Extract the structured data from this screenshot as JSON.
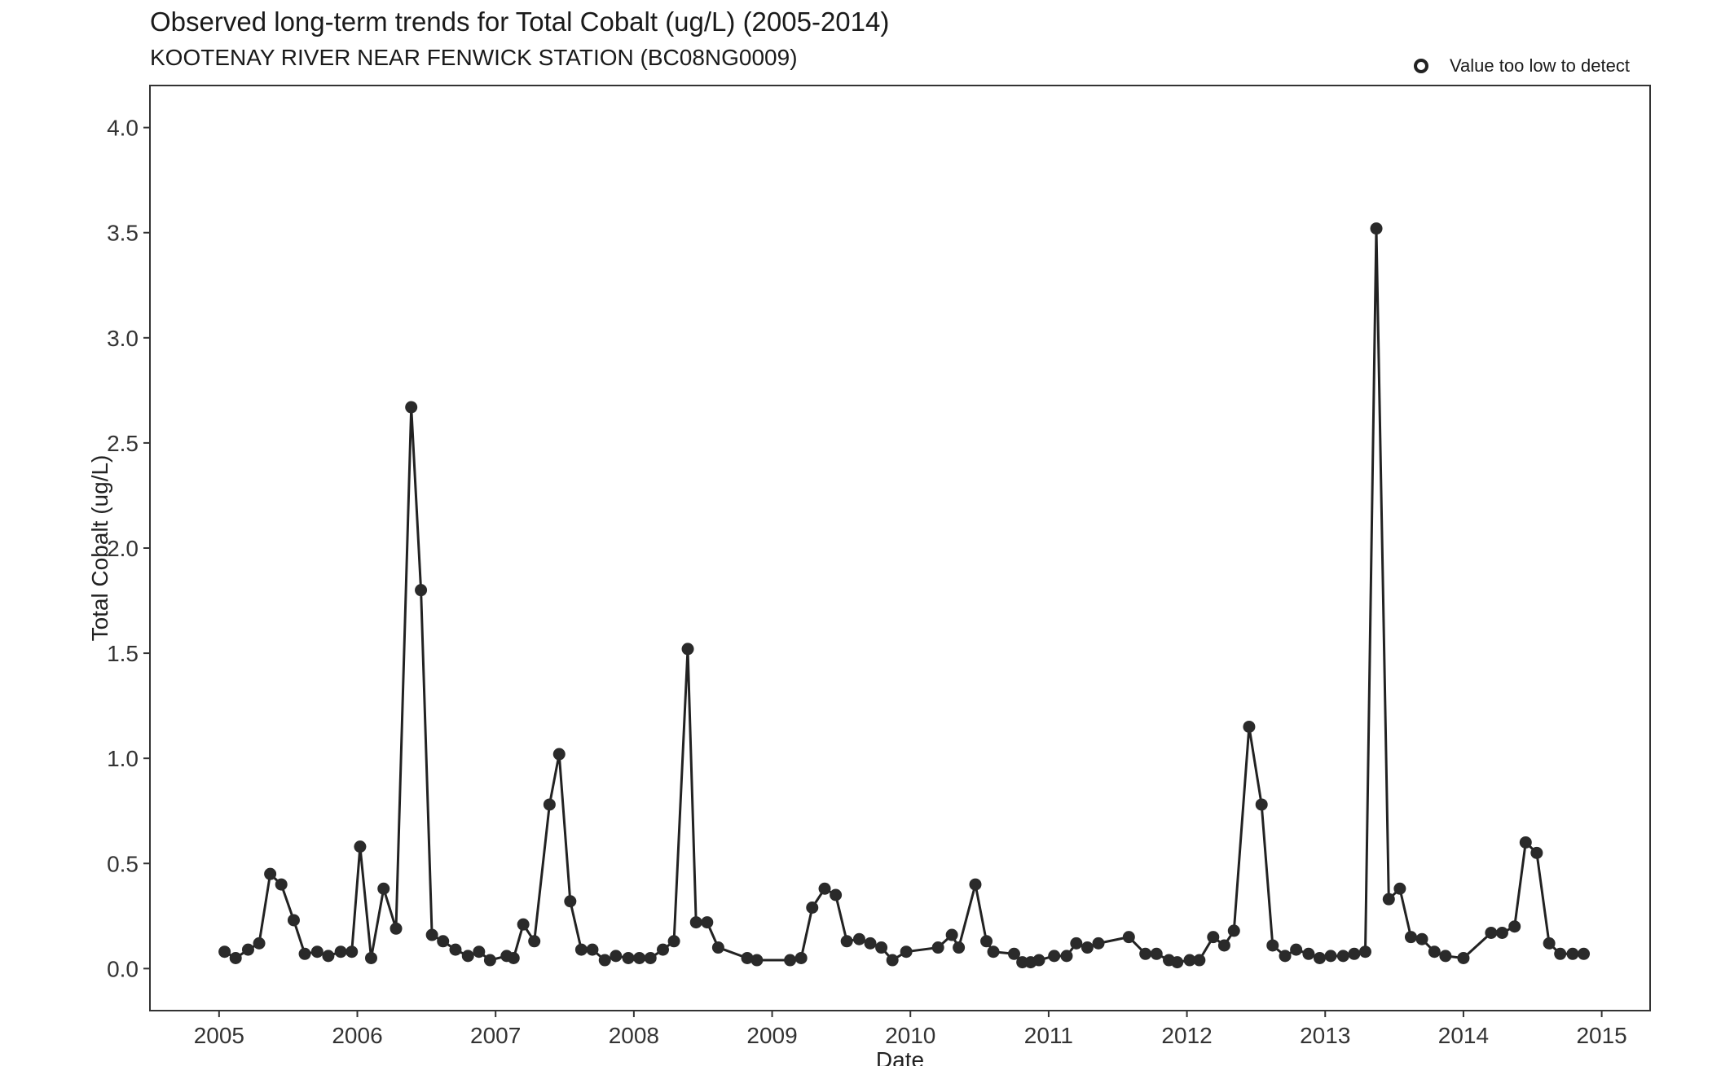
{
  "chart_data": {
    "type": "line",
    "title": "Observed long-term trends for Total Cobalt (ug/L) (2005-2014)",
    "subtitle": "KOOTENAY RIVER NEAR FENWICK STATION (BC08NG0009)",
    "xlabel": "Date",
    "ylabel": "Total Cobalt (ug/L)",
    "xlim": [
      2004.5,
      2015.35
    ],
    "ylim": [
      -0.2,
      4.2
    ],
    "x_ticks": [
      2005,
      2006,
      2007,
      2008,
      2009,
      2010,
      2011,
      2012,
      2013,
      2014,
      2015
    ],
    "y_ticks": [
      0.0,
      0.5,
      1.0,
      1.5,
      2.0,
      2.5,
      3.0,
      3.5,
      4.0
    ],
    "y_tick_labels": [
      "0.0",
      "0.5",
      "1.0",
      "1.5",
      "2.0",
      "2.5",
      "3.0",
      "3.5",
      "4.0"
    ],
    "grid": false,
    "legend_position": "top-right",
    "legend": [
      {
        "label": "Value too low to detect",
        "marker": "open-circle"
      }
    ],
    "line_color": "#222222",
    "marker_color": "#2a2a2a",
    "series": [
      {
        "x": [
          2005.04,
          2005.12,
          2005.21,
          2005.29,
          2005.37,
          2005.45,
          2005.54,
          2005.62,
          2005.71,
          2005.79,
          2005.88,
          2005.96,
          2006.02,
          2006.1,
          2006.19,
          2006.28,
          2006.39,
          2006.46,
          2006.54,
          2006.62,
          2006.71,
          2006.8,
          2006.88,
          2006.96,
          2007.08,
          2007.13,
          2007.2,
          2007.28,
          2007.39,
          2007.46,
          2007.54,
          2007.62,
          2007.7,
          2007.79,
          2007.87,
          2007.96,
          2008.04,
          2008.12,
          2008.21,
          2008.29,
          2008.39,
          2008.45,
          2008.53,
          2008.61,
          2008.82,
          2008.89,
          2009.13,
          2009.21,
          2009.29,
          2009.38,
          2009.46,
          2009.54,
          2009.63,
          2009.71,
          2009.79,
          2009.87,
          2009.97,
          2010.2,
          2010.3,
          2010.35,
          2010.47,
          2010.55,
          2010.6,
          2010.75,
          2010.81,
          2010.87,
          2010.93,
          2011.04,
          2011.13,
          2011.2,
          2011.28,
          2011.36,
          2011.58,
          2011.7,
          2011.78,
          2011.87,
          2011.93,
          2012.02,
          2012.09,
          2012.19,
          2012.27,
          2012.34,
          2012.45,
          2012.54,
          2012.62,
          2012.71,
          2012.79,
          2012.88,
          2012.96,
          2013.04,
          2013.13,
          2013.21,
          2013.29,
          2013.37,
          2013.46,
          2013.54,
          2013.62,
          2013.7,
          2013.79,
          2013.87,
          2014.0,
          2014.2,
          2014.28,
          2014.37,
          2014.45,
          2014.53,
          2014.62,
          2014.7,
          2014.79,
          2014.87
        ],
        "y": [
          0.08,
          0.05,
          0.09,
          0.12,
          0.45,
          0.4,
          0.23,
          0.07,
          0.08,
          0.06,
          0.08,
          0.08,
          0.58,
          0.05,
          0.38,
          0.19,
          2.67,
          1.8,
          0.16,
          0.13,
          0.09,
          0.06,
          0.08,
          0.04,
          0.06,
          0.05,
          0.21,
          0.13,
          0.78,
          1.02,
          0.32,
          0.09,
          0.09,
          0.04,
          0.06,
          0.05,
          0.05,
          0.05,
          0.09,
          0.13,
          1.52,
          0.22,
          0.22,
          0.1,
          0.05,
          0.04,
          0.04,
          0.05,
          0.29,
          0.38,
          0.35,
          0.13,
          0.14,
          0.12,
          0.1,
          0.04,
          0.08,
          0.1,
          0.16,
          0.1,
          0.4,
          0.13,
          0.08,
          0.07,
          0.03,
          0.03,
          0.04,
          0.06,
          0.06,
          0.12,
          0.1,
          0.12,
          0.15,
          0.07,
          0.07,
          0.04,
          0.03,
          0.04,
          0.04,
          0.15,
          0.11,
          0.18,
          1.15,
          0.78,
          0.11,
          0.06,
          0.09,
          0.07,
          0.05,
          0.06,
          0.06,
          0.07,
          0.08,
          3.52,
          0.33,
          0.38,
          0.15,
          0.14,
          0.08,
          0.06,
          0.05,
          0.17,
          0.17,
          0.2,
          0.6,
          0.55,
          0.12,
          0.07,
          0.07,
          0.07
        ]
      }
    ]
  }
}
